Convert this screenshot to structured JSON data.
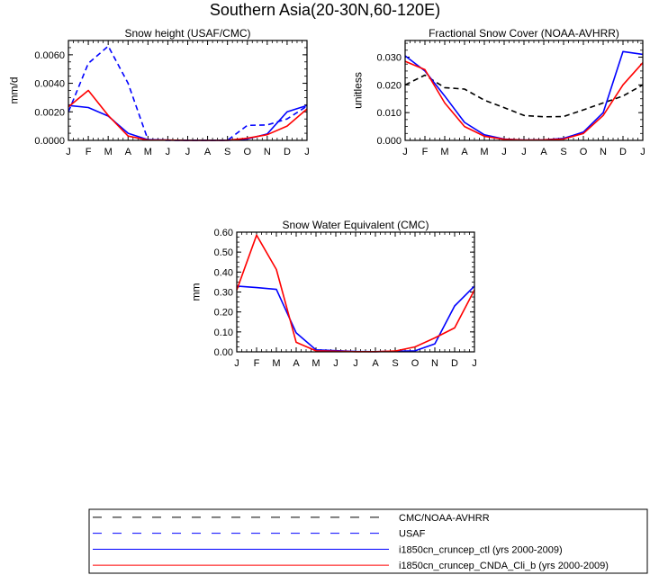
{
  "page_title": "Southern Asia(20-30N,60-120E)",
  "colors": {
    "ctl": "#0000ff",
    "cnda": "#ff0000",
    "obs_cmc_avhrr": "#000000",
    "obs_usaf": "#0000ff"
  },
  "chart_data": [
    {
      "type": "line",
      "title": "Snow height (USAF/CMC)",
      "xlabel": "",
      "ylabel": "mm/d",
      "categories": [
        "J",
        "F",
        "M",
        "A",
        "M",
        "J",
        "J",
        "A",
        "S",
        "O",
        "N",
        "D",
        "J"
      ],
      "ylim": [
        0,
        0.007
      ],
      "yticks": [
        0,
        0.002,
        0.004,
        0.006
      ],
      "ytick_labels": [
        "0.0000",
        "0.0020",
        "0.0040",
        "0.0060"
      ],
      "grid": false,
      "series": [
        {
          "name": "USAF",
          "style": "dashed",
          "color": "#0000ff",
          "values": [
            0.002,
            0.0054,
            0.0066,
            0.004,
            5e-05,
            0.0,
            0.0,
            0.0,
            0.0,
            0.00105,
            0.00108,
            0.0015,
            0.0024
          ]
        },
        {
          "name": "i1850cn_cruncep_ctl (yrs 2000-2009)",
          "style": "solid",
          "color": "#0000ff",
          "values": [
            0.00245,
            0.0023,
            0.0017,
            0.0005,
            5e-05,
            2e-05,
            0.0,
            0.0,
            0.0,
            0.0001,
            0.00045,
            0.002,
            0.00245
          ]
        },
        {
          "name": "i1850cn_cruncep_CNDA_Cli_b (yrs 2000-2009)",
          "style": "solid",
          "color": "#ff0000",
          "values": [
            0.00235,
            0.0035,
            0.00175,
            0.0003,
            2e-05,
            2e-05,
            0.0,
            0.0,
            0.0,
            0.00015,
            0.0004,
            0.001,
            0.0022
          ]
        }
      ]
    },
    {
      "type": "line",
      "title": "Fractional Snow Cover (NOAA-AVHRR)",
      "xlabel": "",
      "ylabel": "unitless",
      "categories": [
        "J",
        "F",
        "M",
        "A",
        "M",
        "J",
        "J",
        "A",
        "S",
        "O",
        "N",
        "D",
        "J"
      ],
      "ylim": [
        0,
        0.036
      ],
      "yticks": [
        0,
        0.01,
        0.02,
        0.03
      ],
      "ytick_labels": [
        "0.000",
        "0.010",
        "0.020",
        "0.030"
      ],
      "grid": false,
      "series": [
        {
          "name": "CMC/NOAA-AVHRR",
          "style": "dashed",
          "color": "#000000",
          "values": [
            0.02,
            0.0235,
            0.019,
            0.0185,
            0.0145,
            0.0118,
            0.009,
            0.0085,
            0.0086,
            0.011,
            0.0135,
            0.016,
            0.02
          ]
        },
        {
          "name": "i1850cn_cruncep_ctl (yrs 2000-2009)",
          "style": "solid",
          "color": "#0000ff",
          "values": [
            0.0305,
            0.025,
            0.016,
            0.0065,
            0.002,
            0.0005,
            0.0001,
            0.0002,
            0.0007,
            0.003,
            0.01,
            0.032,
            0.031
          ]
        },
        {
          "name": "i1850cn_cruncep_CNDA_Cli_b (yrs 2000-2009)",
          "style": "solid",
          "color": "#ff0000",
          "values": [
            0.0285,
            0.0255,
            0.0135,
            0.005,
            0.0015,
            0.0004,
            0.0001,
            0.0002,
            0.0005,
            0.0025,
            0.009,
            0.02,
            0.028
          ]
        }
      ]
    },
    {
      "type": "line",
      "title": "Snow Water Equivalent (CMC)",
      "xlabel": "",
      "ylabel": "mm",
      "categories": [
        "J",
        "F",
        "M",
        "A",
        "M",
        "J",
        "J",
        "A",
        "S",
        "O",
        "N",
        "D",
        "J"
      ],
      "ylim": [
        0,
        0.6
      ],
      "yticks": [
        0,
        0.1,
        0.2,
        0.3,
        0.4,
        0.5,
        0.6
      ],
      "ytick_labels": [
        "0.00",
        "0.10",
        "0.20",
        "0.30",
        "0.40",
        "0.50",
        "0.60"
      ],
      "grid": false,
      "series": [
        {
          "name": "i1850cn_cruncep_ctl (yrs 2000-2009)",
          "style": "solid",
          "color": "#0000ff",
          "values": [
            0.33,
            0.322,
            0.313,
            0.095,
            0.01,
            0.006,
            0.002,
            0.001,
            0.003,
            0.005,
            0.04,
            0.23,
            0.33
          ]
        },
        {
          "name": "i1850cn_cruncep_CNDA_Cli_b (yrs 2000-2009)",
          "style": "solid",
          "color": "#ff0000",
          "values": [
            0.31,
            0.585,
            0.413,
            0.048,
            0.005,
            0.003,
            0.001,
            0.001,
            0.004,
            0.025,
            0.07,
            0.12,
            0.31
          ]
        }
      ]
    }
  ],
  "legend": [
    {
      "label": "CMC/NOAA-AVHRR",
      "style": "dashed",
      "color": "#000000"
    },
    {
      "label": "USAF",
      "style": "dashed",
      "color": "#0000ff"
    },
    {
      "label": "i1850cn_cruncep_ctl (yrs 2000-2009)",
      "style": "solid",
      "color": "#0000ff"
    },
    {
      "label": "i1850cn_cruncep_CNDA_Cli_b (yrs 2000-2009)",
      "style": "solid",
      "color": "#ff0000"
    }
  ]
}
